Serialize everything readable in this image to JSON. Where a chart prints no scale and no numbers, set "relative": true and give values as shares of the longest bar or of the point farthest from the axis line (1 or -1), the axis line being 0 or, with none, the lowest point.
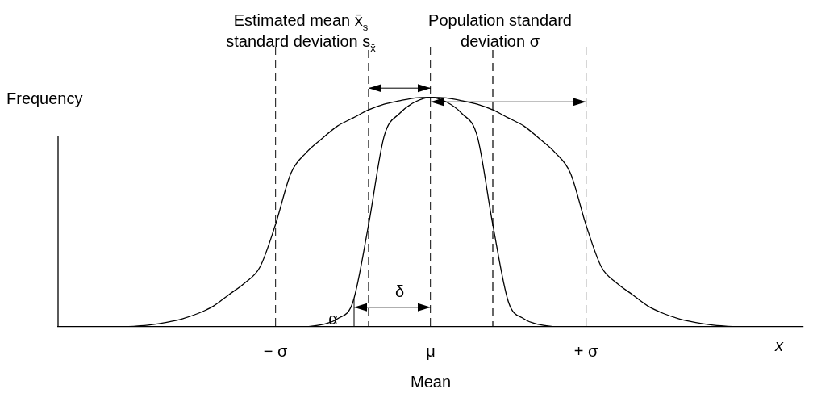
{
  "chart_data": {
    "type": "line",
    "relative": true,
    "ylabel": "Frequency",
    "xlabel": "x",
    "categories": [
      null,
      null,
      null,
      null,
      null,
      null,
      null,
      null,
      null,
      null,
      null,
      null,
      null,
      null,
      "− σ",
      null,
      null,
      null,
      null,
      null,
      null,
      null,
      null,
      null,
      "μ\nMean",
      null,
      null,
      null,
      null,
      null,
      null,
      null,
      null,
      null,
      "+ σ",
      null,
      null,
      null,
      null,
      null,
      null,
      null,
      null,
      null,
      null,
      null,
      null,
      null,
      null
    ],
    "series": [
      {
        "color": "#000000",
        "values": [
          null,
          null,
          null,
          null,
          0,
          0.003,
          0.009,
          0.02,
          0.035,
          0.058,
          0.09,
          0.14,
          0.19,
          0.26,
          0.445,
          0.67,
          0.76,
          0.82,
          0.875,
          0.91,
          0.945,
          0.97,
          0.985,
          0.997,
          1,
          0.997,
          0.985,
          0.97,
          0.945,
          0.91,
          0.875,
          0.82,
          0.76,
          0.67,
          0.445,
          0.26,
          0.19,
          0.14,
          0.09,
          0.058,
          0.035,
          0.02,
          0.009,
          0.003,
          0,
          null,
          null,
          null,
          null
        ]
      },
      {
        "color": "#000000",
        "values": [
          null,
          null,
          null,
          null,
          null,
          null,
          null,
          null,
          null,
          null,
          null,
          null,
          null,
          null,
          null,
          null,
          0,
          0.01,
          0.035,
          0.11,
          0.445,
          0.83,
          0.93,
          0.98,
          1,
          0.98,
          0.93,
          0.83,
          0.445,
          0.11,
          0.035,
          0.01,
          0,
          null,
          null,
          null,
          null,
          null,
          null,
          null,
          null,
          null,
          null,
          null,
          null,
          null,
          null,
          null,
          null
        ]
      }
    ],
    "annotations": [
      "Estimated mean x̄$_{s}$",
      "standard deviation s$_{x̄}$",
      "Population standard",
      "deviation σ",
      "δ",
      "α"
    ],
    "grid": "x",
    "legend": false,
    "marker": "none",
    "line_style": "solid"
  }
}
